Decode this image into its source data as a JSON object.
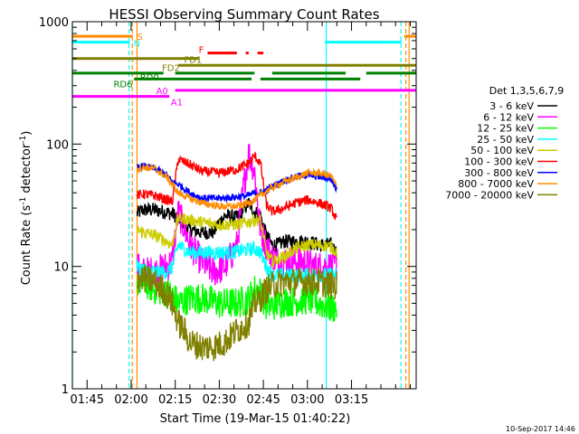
{
  "chart_data": {
    "type": "line",
    "title": "HESSI Observing Summary Count Rates",
    "xlabel": "Start Time (19-Mar-15 01:40:22)",
    "ylabel_main": "Count Rate (s",
    "ylabel_sup1": "-1",
    "ylabel_mid": " detector",
    "ylabel_sup2": "-1",
    "ylabel_end": ")",
    "footer": "10-Sep-2017 14:46",
    "yscale": "log",
    "ylim": [
      1,
      1000
    ],
    "xlim_min": [
      100,
      217
    ],
    "x_ticks": [
      {
        "m": 105,
        "label": "01:45"
      },
      {
        "m": 120,
        "label": "02:00"
      },
      {
        "m": 135,
        "label": "02:15"
      },
      {
        "m": 150,
        "label": "02:30"
      },
      {
        "m": 165,
        "label": "02:45"
      },
      {
        "m": 180,
        "label": "03:00"
      },
      {
        "m": 195,
        "label": "03:15"
      }
    ],
    "y_ticks": [
      {
        "v": 1,
        "label": "1"
      },
      {
        "v": 10,
        "label": "10"
      },
      {
        "v": 100,
        "label": "100"
      },
      {
        "v": 1000,
        "label": "1000"
      }
    ],
    "legend": {
      "title": "Det 1,3,5,6,7,9",
      "position": "right",
      "entries": [
        {
          "label": "3 - 6 keV",
          "color": "#000000"
        },
        {
          "label": "6 - 12 keV",
          "color": "#ff00ff"
        },
        {
          "label": "12 - 25 keV",
          "color": "#00ff00"
        },
        {
          "label": "25 - 50 keV",
          "color": "#00ffff"
        },
        {
          "label": "50 - 100 keV",
          "color": "#cccc00"
        },
        {
          "label": "100 - 300 keV",
          "color": "#ff0000"
        },
        {
          "label": "300 - 800 keV",
          "color": "#0000ff"
        },
        {
          "label": "800 - 7000 keV",
          "color": "#ff8c00"
        },
        {
          "label": "7000 - 20000 keV",
          "color": "#808000"
        }
      ]
    },
    "flag_bars": [
      {
        "label": "S",
        "color": "#ff8c00",
        "y": 760,
        "segments": [
          [
            100,
            120.5
          ],
          [
            213,
            217
          ]
        ]
      },
      {
        "label": "N",
        "color": "#00ffff",
        "y": 680,
        "segments": [
          [
            100,
            119.5
          ],
          [
            186,
            212
          ]
        ]
      },
      {
        "label": "F",
        "color": "#ff0000",
        "y": 555,
        "segments": [
          [
            146,
            156
          ],
          [
            159,
            160
          ],
          [
            163,
            165
          ]
        ]
      },
      {
        "label": "FD1",
        "color": "#808000",
        "y": 500,
        "segments": [
          [
            100,
            143
          ]
        ]
      },
      {
        "label": "FD2",
        "color": "#808000",
        "y": 440,
        "segments": [
          [
            136,
            217
          ]
        ]
      },
      {
        "label": "RD0",
        "color": "#008000",
        "y": 380,
        "segments": [
          [
            100,
            131
          ],
          [
            135,
            162
          ],
          [
            168,
            193
          ],
          [
            200,
            217
          ]
        ]
      },
      {
        "label": "RD6",
        "color": "#008000",
        "y": 340,
        "segments": [
          [
            121,
            161
          ],
          [
            164,
            198
          ]
        ]
      },
      {
        "label": "A0",
        "color": "#ff00ff",
        "y": 275,
        "segments": [
          [
            135,
            217
          ]
        ]
      },
      {
        "label": "A1",
        "color": "#ff00ff",
        "y": 245,
        "segments": [
          [
            100,
            133
          ]
        ]
      }
    ],
    "vlines": [
      {
        "m": 100,
        "color": "#00ffff",
        "style": "solid"
      },
      {
        "m": 119.3,
        "color": "#00ffff",
        "style": "dashed"
      },
      {
        "m": 120.4,
        "color": "#ff8c00",
        "style": "dashed"
      },
      {
        "m": 122,
        "color": "#ff8c00",
        "style": "solid"
      },
      {
        "m": 186.4,
        "color": "#00ffff",
        "style": "solid"
      },
      {
        "m": 211.8,
        "color": "#00ffff",
        "style": "dashed"
      },
      {
        "m": 213.5,
        "color": "#ff8c00",
        "style": "dashed"
      },
      {
        "m": 214.6,
        "color": "#ff8c00",
        "style": "solid"
      }
    ],
    "series": [
      {
        "name": "3 - 6 keV",
        "color": "#000000",
        "noise": 0.06,
        "x": [
          122,
          124,
          128,
          134,
          136,
          140,
          144,
          148,
          150,
          152,
          156,
          160,
          162,
          164,
          166,
          168,
          170,
          172,
          176,
          180,
          184,
          188,
          190
        ],
        "y": [
          27,
          29,
          29,
          27,
          25,
          20,
          19,
          19,
          23,
          26,
          25,
          33,
          28,
          26,
          18,
          15,
          15,
          16,
          16,
          16,
          15,
          15,
          13
        ]
      },
      {
        "name": "6 - 12 keV",
        "color": "#ff00ff",
        "noise": 0.13,
        "x": [
          122,
          124,
          128,
          132,
          134,
          136,
          138,
          140,
          144,
          148,
          152,
          156,
          158,
          160,
          162,
          164,
          166,
          168,
          170,
          174,
          178,
          182,
          186,
          190
        ],
        "y": [
          10,
          9,
          9,
          10,
          11,
          28,
          21,
          15,
          11,
          9,
          10,
          15,
          40,
          85,
          60,
          20,
          15,
          12,
          11,
          11,
          11,
          10,
          10,
          10
        ]
      },
      {
        "name": "12 - 25 keV",
        "color": "#00ff00",
        "noise": 0.13,
        "x": [
          122,
          124,
          128,
          132,
          134,
          136,
          140,
          144,
          150,
          156,
          160,
          162,
          164,
          166,
          168,
          172,
          176,
          180,
          184,
          188,
          190
        ],
        "y": [
          7.5,
          7.5,
          6.5,
          6.2,
          5.8,
          5.0,
          5.5,
          5.5,
          5.0,
          5.0,
          5.4,
          6.5,
          6.2,
          4.8,
          4.8,
          5.2,
          5.2,
          5.4,
          5.0,
          4.6,
          4.6
        ]
      },
      {
        "name": "25 - 50 keV",
        "color": "#00ffff",
        "noise": 0.06,
        "x": [
          122,
          124,
          128,
          132,
          134,
          136,
          140,
          146,
          150,
          154,
          158,
          162,
          164,
          166,
          168,
          172,
          176,
          180,
          184,
          188,
          190
        ],
        "y": [
          10,
          9.5,
          9,
          9,
          9.8,
          15,
          13,
          13,
          13,
          13,
          13.5,
          14,
          13,
          10,
          8.5,
          8.5,
          8.5,
          8.5,
          8.5,
          8.5,
          8.5
        ]
      },
      {
        "name": "50 - 100 keV",
        "color": "#cccc00",
        "noise": 0.05,
        "x": [
          122,
          124,
          128,
          132,
          134,
          136,
          140,
          144,
          150,
          156,
          160,
          162,
          164,
          166,
          168,
          172,
          176,
          180,
          184,
          188,
          190
        ],
        "y": [
          20,
          19,
          18,
          16,
          15,
          25,
          24,
          23,
          22,
          22,
          23,
          24,
          24,
          13,
          11,
          12,
          14,
          15,
          15,
          14.5,
          13
        ]
      },
      {
        "name": "100 - 300 keV",
        "color": "#ff0000",
        "noise": 0.04,
        "x": [
          122,
          124,
          128,
          132,
          134,
          136,
          140,
          144,
          150,
          156,
          160,
          162,
          164,
          166,
          168,
          172,
          176,
          180,
          184,
          188,
          190
        ],
        "y": [
          38,
          39,
          38,
          35,
          34,
          75,
          68,
          60,
          58,
          62,
          70,
          80,
          70,
          32,
          28,
          30,
          33,
          35,
          33,
          30,
          24
        ]
      },
      {
        "name": "300 - 800 keV",
        "color": "#0000ff",
        "noise": 0.03,
        "x": [
          122,
          124,
          128,
          132,
          134,
          136,
          140,
          144,
          150,
          156,
          160,
          162,
          164,
          166,
          168,
          172,
          176,
          180,
          184,
          188,
          190
        ],
        "y": [
          64,
          66,
          63,
          56,
          49,
          47,
          40,
          36,
          36,
          37,
          38,
          40,
          40,
          42,
          45,
          50,
          54,
          56,
          54,
          52,
          42
        ]
      },
      {
        "name": "800 - 7000 keV",
        "color": "#ff8c00",
        "noise": 0.03,
        "x": [
          122,
          124,
          128,
          132,
          134,
          136,
          140,
          144,
          150,
          156,
          160,
          162,
          164,
          166,
          168,
          172,
          176,
          180,
          184,
          188,
          190
        ],
        "y": [
          62,
          65,
          63,
          54,
          47,
          40,
          36,
          33,
          31,
          31,
          33,
          35,
          38,
          41,
          44,
          49,
          53,
          58,
          58,
          55,
          45
        ]
      },
      {
        "name": "7000 - 20000 keV",
        "color": "#808000",
        "noise": 0.12,
        "x": [
          122,
          124,
          128,
          132,
          134,
          136,
          138,
          140,
          144,
          148,
          152,
          156,
          160,
          162,
          164,
          166,
          168,
          172,
          176,
          180,
          184,
          188,
          190
        ],
        "y": [
          8,
          8,
          7.5,
          6,
          5,
          3.5,
          3,
          2.4,
          2.2,
          2.2,
          2.4,
          3,
          3.5,
          5,
          5.5,
          6.5,
          7,
          7.5,
          7.5,
          7.5,
          7.5,
          7,
          7
        ]
      }
    ]
  }
}
